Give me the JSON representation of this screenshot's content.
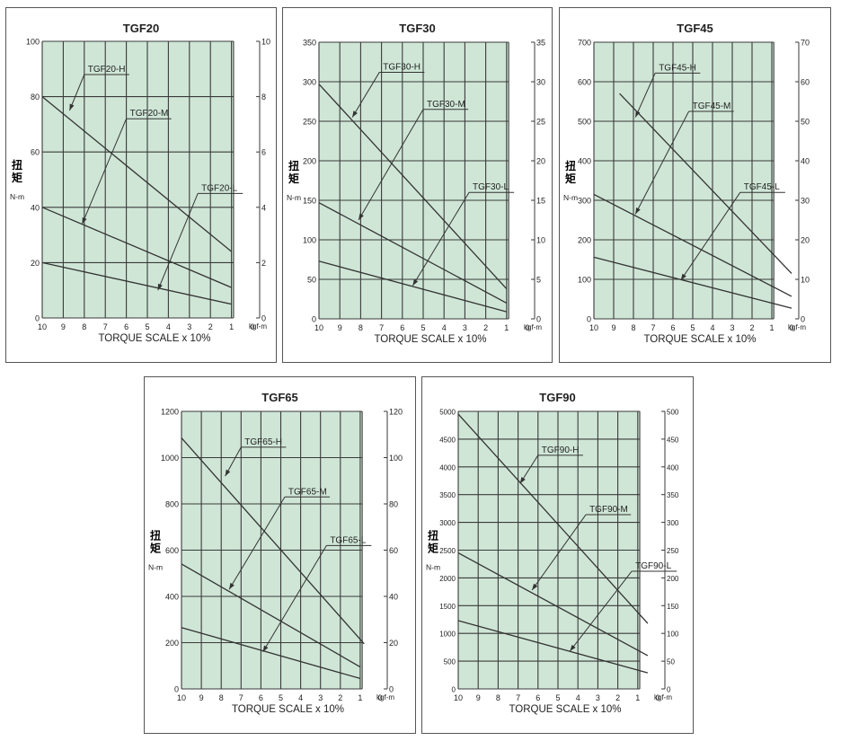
{
  "colors": {
    "plot_bg": "#cfe6d6",
    "grid": "#3a3a3a",
    "line": "#333333",
    "axis_text": "#222222",
    "frame": "#555555"
  },
  "shared": {
    "x_axis_label": "TORQUE SCALE x 10%",
    "y_axis_label_chars": [
      "扭",
      "矩"
    ],
    "y_left_unit": "N-m",
    "y_right_unit": "kgf-m"
  },
  "chart_data": [
    {
      "type": "line",
      "title": "TGF20",
      "xlabel": "TORQUE SCALE x 10%",
      "ylabel": "扭矩 N-m",
      "y2label": "kgf-m",
      "xlim": [
        10,
        0
      ],
      "x_ticks": [
        "10",
        "9",
        "8",
        "7",
        "6",
        "5",
        "4",
        "3",
        "2",
        "1",
        "0"
      ],
      "ylim": [
        0,
        100
      ],
      "y_ticks": [
        "0",
        "20",
        "40",
        "60",
        "80",
        "100"
      ],
      "y2lim": [
        0,
        10
      ],
      "y2_ticks": [
        "0",
        "2",
        "4",
        "6",
        "8",
        "10"
      ],
      "grid": true,
      "series": [
        {
          "name": "TGF20-H",
          "x": [
            10,
            1
          ],
          "y": [
            80,
            24
          ],
          "label_at": [
            8,
            88
          ],
          "arrow_to": [
            8.7,
            75
          ]
        },
        {
          "name": "TGF20-M",
          "x": [
            10,
            1
          ],
          "y": [
            40,
            11
          ],
          "label_at": [
            6,
            72
          ],
          "arrow_to": [
            8.1,
            34
          ]
        },
        {
          "name": "TGF20-L",
          "x": [
            10,
            1
          ],
          "y": [
            20,
            5
          ],
          "label_at": [
            2.6,
            45
          ],
          "arrow_to": [
            4.5,
            10
          ]
        }
      ]
    },
    {
      "type": "line",
      "title": "TGF30",
      "xlabel": "TORQUE SCALE x 10%",
      "ylabel": "扭矩 N-m",
      "y2label": "kgf-m",
      "xlim": [
        10,
        0
      ],
      "x_ticks": [
        "10",
        "9",
        "8",
        "7",
        "6",
        "5",
        "4",
        "3",
        "2",
        "1",
        "0"
      ],
      "ylim": [
        0,
        350
      ],
      "y_ticks": [
        "0",
        "50",
        "100",
        "150",
        "200",
        "250",
        "300",
        "350"
      ],
      "y2lim": [
        0,
        35
      ],
      "y2_ticks": [
        "0",
        "5",
        "10",
        "15",
        "20",
        "25",
        "30",
        "35"
      ],
      "grid": true,
      "series": [
        {
          "name": "TGF30-H",
          "x": [
            10,
            1
          ],
          "y": [
            297,
            38
          ],
          "label_at": [
            7.1,
            312
          ],
          "arrow_to": [
            8.4,
            255
          ]
        },
        {
          "name": "TGF30-M",
          "x": [
            10,
            1
          ],
          "y": [
            147,
            20
          ],
          "label_at": [
            5,
            265
          ],
          "arrow_to": [
            8.1,
            125
          ]
        },
        {
          "name": "TGF30-L",
          "x": [
            10,
            1
          ],
          "y": [
            73,
            9
          ],
          "label_at": [
            2.8,
            160
          ],
          "arrow_to": [
            5.5,
            42
          ]
        }
      ]
    },
    {
      "type": "line",
      "title": "TGF45",
      "xlabel": "TORQUE SCALE x 10%",
      "ylabel": "扭矩 N-m",
      "y2label": "kgf-m",
      "xlim": [
        10,
        0
      ],
      "x_ticks": [
        "10",
        "9",
        "8",
        "7",
        "6",
        "5",
        "4",
        "3",
        "2",
        "1",
        "0"
      ],
      "ylim": [
        0,
        700
      ],
      "y_ticks": [
        "0",
        "100",
        "200",
        "300",
        "400",
        "500",
        "600",
        "700"
      ],
      "y2lim": [
        0,
        70
      ],
      "y2_ticks": [
        "0",
        "10",
        "20",
        "30",
        "40",
        "50",
        "60",
        "70"
      ],
      "grid": true,
      "series": [
        {
          "name": "TGF45-H",
          "x": [
            8.7,
            0
          ],
          "y": [
            570,
            115
          ],
          "label_at": [
            6.9,
            622
          ],
          "arrow_to": [
            7.9,
            510
          ]
        },
        {
          "name": "TGF45-M",
          "x": [
            10,
            0
          ],
          "y": [
            315,
            57
          ],
          "label_at": [
            5.2,
            525
          ],
          "arrow_to": [
            7.9,
            265
          ]
        },
        {
          "name": "TGF45-L",
          "x": [
            10,
            0
          ],
          "y": [
            156,
            27
          ],
          "label_at": [
            2.6,
            320
          ],
          "arrow_to": [
            5.6,
            98
          ]
        }
      ]
    },
    {
      "type": "line",
      "title": "TGF65",
      "xlabel": "TORQUE SCALE x 10%",
      "ylabel": "扭矩 N-m",
      "y2label": "kgf-m",
      "xlim": [
        10,
        0
      ],
      "x_ticks": [
        "10",
        "9",
        "8",
        "7",
        "6",
        "5",
        "4",
        "3",
        "2",
        "1",
        "0"
      ],
      "ylim": [
        0,
        1200
      ],
      "y_ticks": [
        "0",
        "200",
        "400",
        "600",
        "800",
        "1000",
        "1200"
      ],
      "y2lim": [
        0,
        120
      ],
      "y2_ticks": [
        "0",
        "20",
        "40",
        "60",
        "80",
        "100",
        "120"
      ],
      "grid": true,
      "series": [
        {
          "name": "TGF65-H",
          "x": [
            10,
            0.8
          ],
          "y": [
            1085,
            195
          ],
          "label_at": [
            7,
            1045
          ],
          "arrow_to": [
            7.8,
            920
          ]
        },
        {
          "name": "TGF65-M",
          "x": [
            10,
            1
          ],
          "y": [
            540,
            95
          ],
          "label_at": [
            4.8,
            830
          ],
          "arrow_to": [
            7.6,
            430
          ]
        },
        {
          "name": "TGF65-L",
          "x": [
            10,
            1
          ],
          "y": [
            265,
            45
          ],
          "label_at": [
            2.7,
            620
          ],
          "arrow_to": [
            5.9,
            160
          ]
        }
      ]
    },
    {
      "type": "line",
      "title": "TGF90",
      "xlabel": "TORQUE SCALE x 10%",
      "ylabel": "扭矩 N-m",
      "y2label": "kgf-m",
      "xlim": [
        10,
        0
      ],
      "x_ticks": [
        "10",
        "9",
        "8",
        "7",
        "6",
        "5",
        "4",
        "3",
        "2",
        "1",
        "0"
      ],
      "ylim": [
        0,
        5000
      ],
      "y_ticks": [
        "0",
        "500",
        "1000",
        "1500",
        "2000",
        "2500",
        "3000",
        "3500",
        "4000",
        "4500",
        "5000"
      ],
      "y2lim": [
        0,
        500
      ],
      "y2_ticks": [
        "0",
        "50",
        "100",
        "150",
        "200",
        "250",
        "300",
        "350",
        "400",
        "450",
        "500"
      ],
      "grid": true,
      "series": [
        {
          "name": "TGF90-H",
          "x": [
            10,
            0.5
          ],
          "y": [
            4950,
            1180
          ],
          "label_at": [
            6,
            4210
          ],
          "arrow_to": [
            6.9,
            3700
          ]
        },
        {
          "name": "TGF90-M",
          "x": [
            10,
            0.5
          ],
          "y": [
            2450,
            600
          ],
          "label_at": [
            3.6,
            3140
          ],
          "arrow_to": [
            6.3,
            1780
          ]
        },
        {
          "name": "TGF90-L",
          "x": [
            10,
            0.5
          ],
          "y": [
            1230,
            290
          ],
          "label_at": [
            1.3,
            2120
          ],
          "arrow_to": [
            4.4,
            680
          ]
        }
      ]
    }
  ]
}
